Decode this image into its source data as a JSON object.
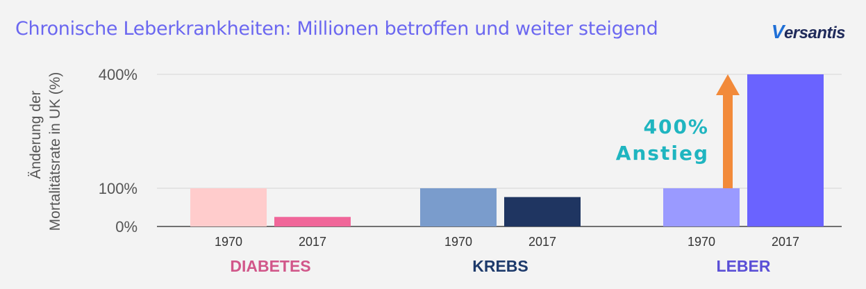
{
  "header": {
    "title": "Chronische Leberkrankheiten: Millionen betroffen und weiter steigend",
    "logo_text": "ersantis",
    "logo_mark": "V"
  },
  "chart_data": {
    "type": "bar",
    "ylabel_line1": "Änderung der",
    "ylabel_line2": "Mortalitätsrate in UK (%)",
    "yticks": [
      {
        "value": 0,
        "label": "0%"
      },
      {
        "value": 100,
        "label": "100%"
      },
      {
        "value": 400,
        "label": "400%"
      }
    ],
    "ylim": [
      0,
      400
    ],
    "groups": [
      {
        "name": "DIABETES",
        "color": "#d1578a",
        "bars": [
          {
            "year": "1970",
            "value": 100,
            "color": "#ffcccc"
          },
          {
            "year": "2017",
            "value": 25,
            "color": "#f06699"
          }
        ]
      },
      {
        "name": "KREBS",
        "color": "#1d3a6b",
        "bars": [
          {
            "year": "1970",
            "value": 100,
            "color": "#7a9ccc"
          },
          {
            "year": "2017",
            "value": 77,
            "color": "#1f3561"
          }
        ]
      },
      {
        "name": "LEBER",
        "color": "#5a4fd6",
        "bars": [
          {
            "year": "1970",
            "value": 100,
            "color": "#9a9aff"
          },
          {
            "year": "2017",
            "value": 400,
            "color": "#6a63ff"
          }
        ]
      }
    ],
    "annotation": {
      "line1": "400%",
      "line2": "Anstieg",
      "arrow_color": "#f28a3a"
    }
  }
}
